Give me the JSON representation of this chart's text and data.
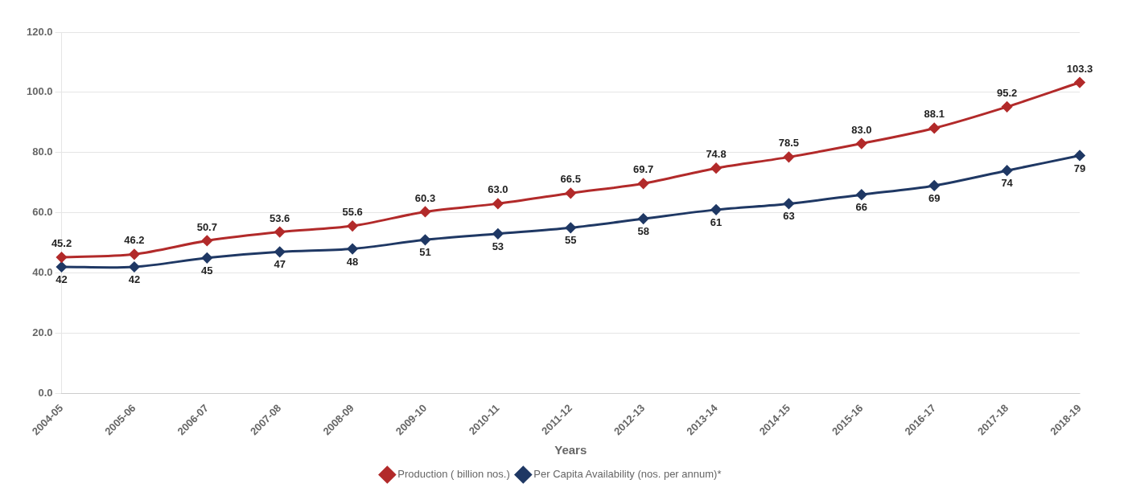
{
  "chart_data": {
    "type": "line",
    "xlabel": "Years",
    "categories": [
      "2004-05",
      "2005-06",
      "2006-07",
      "2007-08",
      "2008-09",
      "2009-10",
      "2010-11",
      "2011-12",
      "2012-13",
      "2013-14",
      "2014-15",
      "2015-16",
      "2016-17",
      "2017-18",
      "2018-19"
    ],
    "series": [
      {
        "name": "Production ( billion nos.)",
        "color": "#b22a2a",
        "values": [
          45.2,
          46.2,
          50.7,
          53.6,
          55.6,
          60.3,
          63.0,
          66.5,
          69.7,
          74.8,
          78.5,
          83.0,
          88.1,
          95.2,
          103.3
        ],
        "value_labels": [
          "45.2",
          "46.2",
          "50.7",
          "53.6",
          "55.6",
          "60.3",
          "63.0",
          "66.5",
          "69.7",
          "74.8",
          "78.5",
          "83.0",
          "88.1",
          "95.2",
          "103.3"
        ]
      },
      {
        "name": "Per Capita Availability (nos. per annum)*",
        "color": "#1f3864",
        "values": [
          42,
          42,
          45,
          47,
          48,
          51,
          53,
          55,
          58,
          61,
          63,
          66,
          69,
          74,
          79
        ],
        "value_labels": [
          "42",
          "42",
          "45",
          "47",
          "48",
          "51",
          "53",
          "55",
          "58",
          "61",
          "63",
          "66",
          "69",
          "74",
          "79"
        ]
      }
    ],
    "ylim": [
      0,
      120
    ],
    "yticks": [
      {
        "value": 0,
        "label": "0.0"
      },
      {
        "value": 20,
        "label": "20.0"
      },
      {
        "value": 40,
        "label": "40.0"
      },
      {
        "value": 60,
        "label": "60.0"
      },
      {
        "value": 80,
        "label": "80.0"
      },
      {
        "value": 100,
        "label": "100.0"
      },
      {
        "value": 120,
        "label": "120.0"
      }
    ],
    "grid": "y",
    "legend": "bottom",
    "marker": "diamond",
    "line_style": "solid"
  }
}
